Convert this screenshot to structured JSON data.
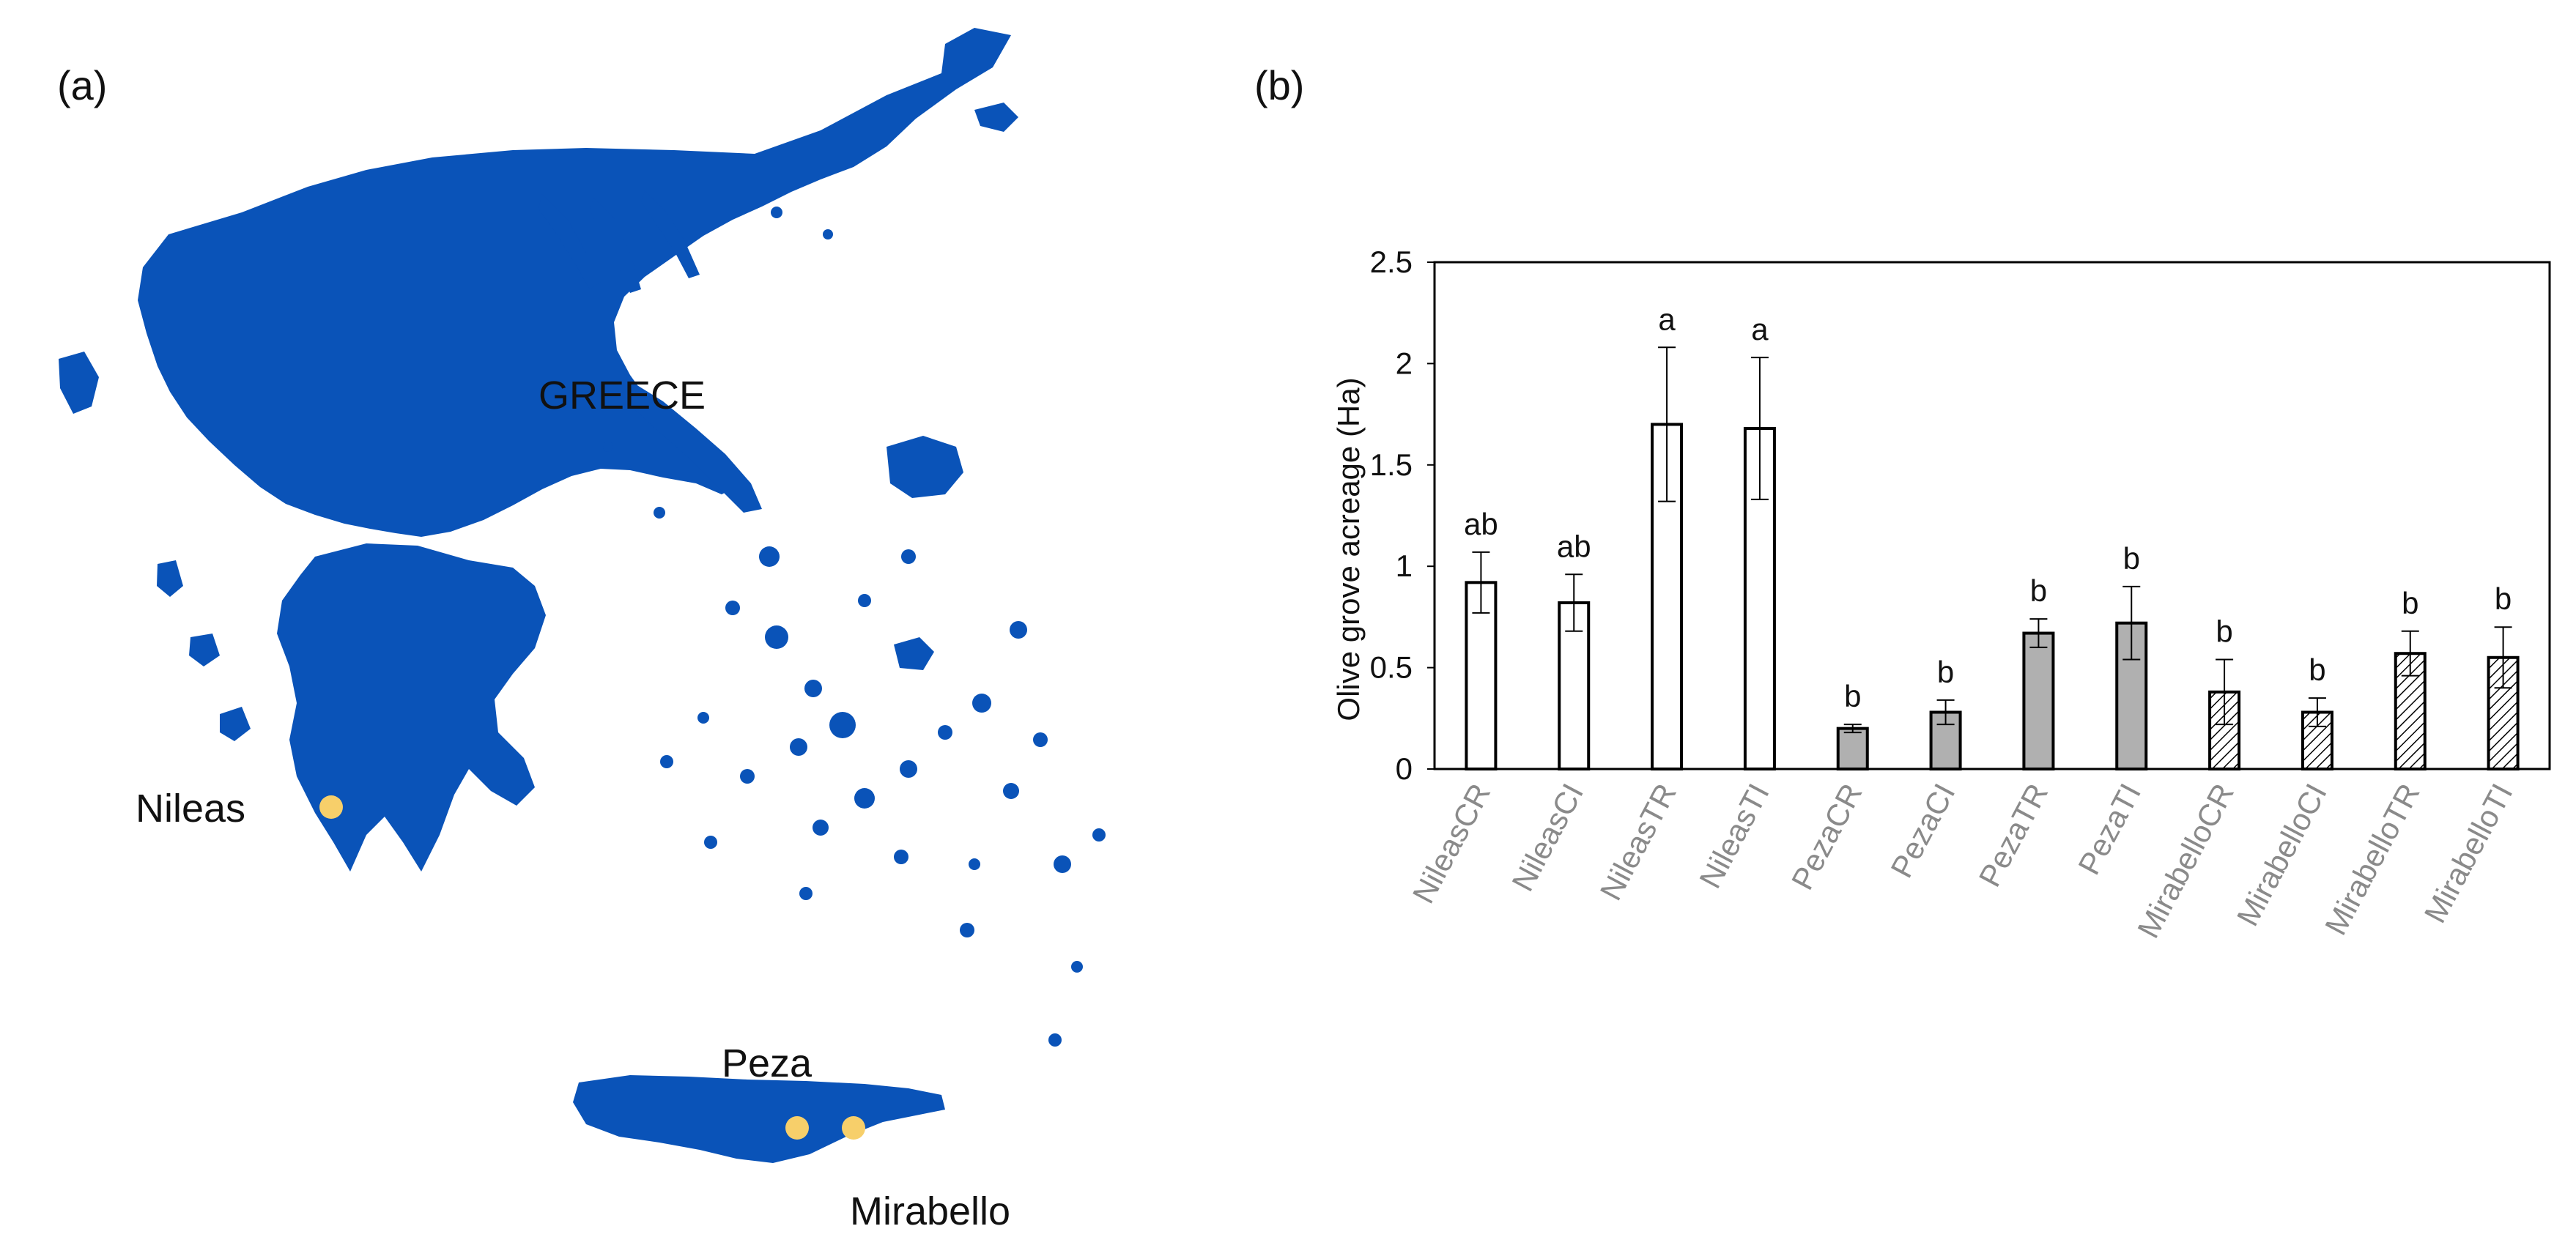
{
  "panels": {
    "a": "(a)",
    "b": "(b)"
  },
  "map": {
    "country_label": "GREECE",
    "land_color": "#0a53b8",
    "site_color": "#f7cf6a",
    "sites": [
      {
        "name": "Nileas"
      },
      {
        "name": "Peza"
      },
      {
        "name": "Mirabello"
      }
    ]
  },
  "chart_data": {
    "type": "bar",
    "ylabel": "Olive grove acreage (Ha)",
    "xlabel": "",
    "ylim": [
      0,
      2.5
    ],
    "yticks": [
      "0",
      "0.5",
      "1",
      "1.5",
      "2",
      "2.5"
    ],
    "grid": false,
    "categories": [
      "NileasCR",
      "NileasCI",
      "NileasTR",
      "NileasTI",
      "PezaCR",
      "PezaCI",
      "PezaTR",
      "PezaTI",
      "MirabelloCR",
      "MirabelloCI",
      "MirabelloTR",
      "MirabelloTI"
    ],
    "values": [
      0.92,
      0.82,
      1.7,
      1.68,
      0.2,
      0.28,
      0.67,
      0.72,
      0.38,
      0.28,
      0.57,
      0.55
    ],
    "errors": [
      0.15,
      0.14,
      0.38,
      0.35,
      0.02,
      0.06,
      0.07,
      0.18,
      0.16,
      0.07,
      0.11,
      0.15
    ],
    "significance": [
      "ab",
      "ab",
      "a",
      "a",
      "b",
      "b",
      "b",
      "b",
      "b",
      "b",
      "b",
      "b"
    ],
    "fills": [
      "white",
      "white",
      "white",
      "white",
      "gray",
      "gray",
      "gray",
      "gray",
      "hatched",
      "hatched",
      "hatched",
      "hatched"
    ],
    "colors": {
      "gray": "#b0b0b0",
      "white": "#ffffff",
      "outline": "#000000",
      "tick_label": "#8a8a8a"
    }
  }
}
